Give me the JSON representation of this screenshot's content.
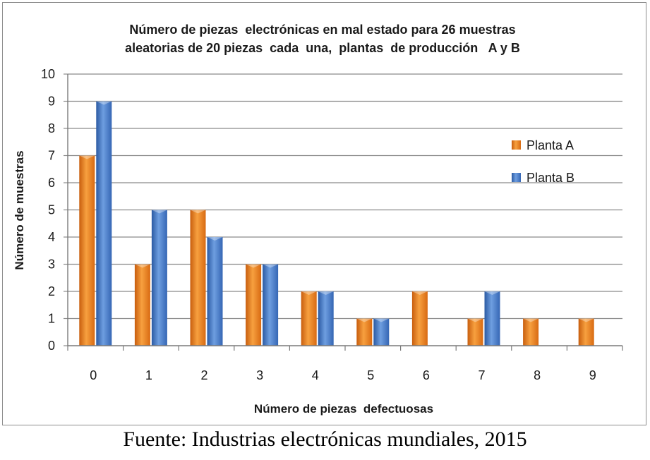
{
  "chart_data": {
    "type": "bar",
    "title_lines": [
      "Número de piezas  electrónicas en mal estado para 26 muestras",
      "aleatorias de 20 piezas  cada  una,  plantas  de producción   A y B"
    ],
    "xlabel": "Número de piezas  defectuosas",
    "ylabel": "Número de muestras",
    "categories": [
      "0",
      "1",
      "2",
      "3",
      "4",
      "5",
      "6",
      "7",
      "8",
      "9"
    ],
    "y_ticks": [
      "0",
      "1",
      "2",
      "3",
      "4",
      "5",
      "6",
      "7",
      "8",
      "9",
      "10"
    ],
    "ylim": [
      0,
      10
    ],
    "grid": true,
    "legend_position": "right",
    "series": [
      {
        "name": "Planta A",
        "color": "#e87d1e",
        "values": [
          7,
          3,
          5,
          3,
          2,
          1,
          2,
          1,
          1,
          1
        ]
      },
      {
        "name": "Planta B",
        "color": "#3f74c2",
        "values": [
          9,
          5,
          4,
          3,
          2,
          1,
          0,
          2,
          0,
          0
        ]
      }
    ]
  },
  "source": "Fuente: Industrias electrónicas mundiales, 2015"
}
